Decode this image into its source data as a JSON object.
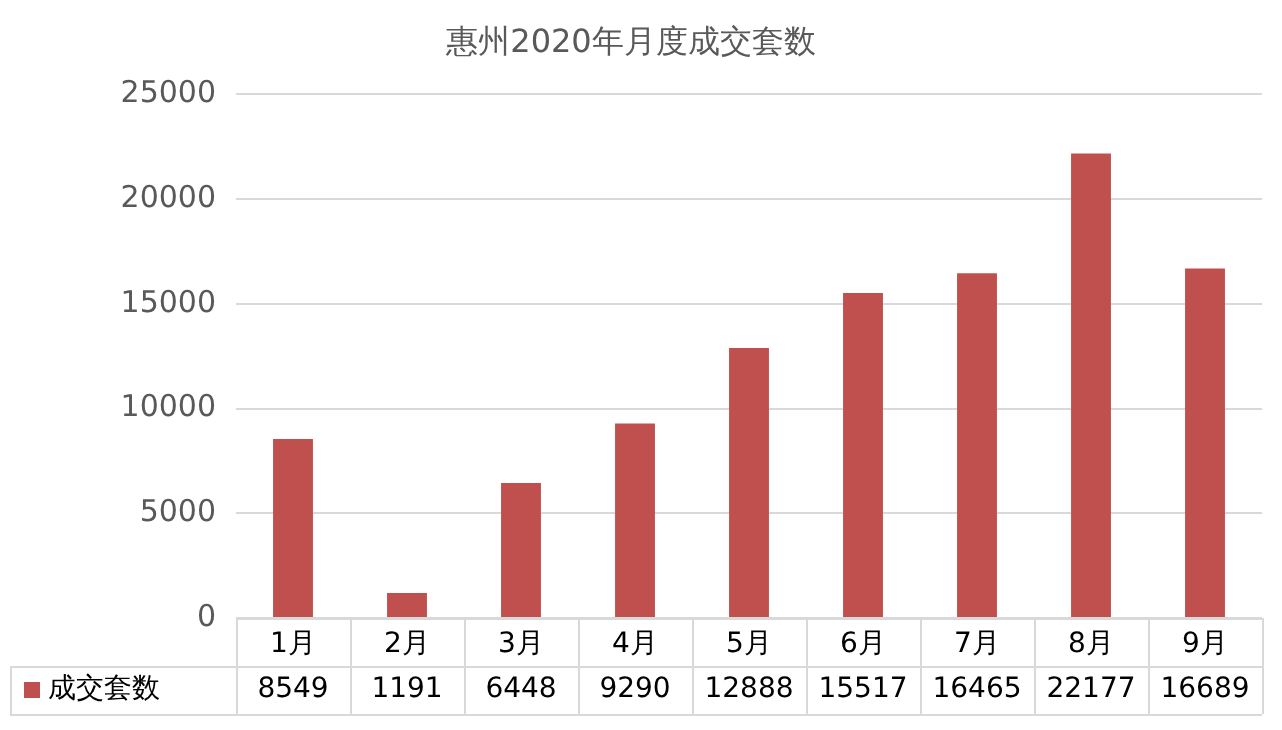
{
  "chart_data": {
    "type": "bar",
    "title": "惠州2020年月度成交套数",
    "categories": [
      "1月",
      "2月",
      "3月",
      "4月",
      "5月",
      "6月",
      "7月",
      "8月",
      "9月"
    ],
    "series": [
      {
        "name": "成交套数",
        "color": "#c0504d",
        "values": [
          8549,
          1191,
          6448,
          9290,
          12888,
          15517,
          16465,
          22177,
          16689
        ]
      }
    ],
    "ylim": [
      0,
      25000
    ],
    "yticks": [
      0,
      5000,
      10000,
      15000,
      20000,
      25000
    ],
    "grid": "y",
    "legend": "bottom",
    "data_labels": true
  }
}
